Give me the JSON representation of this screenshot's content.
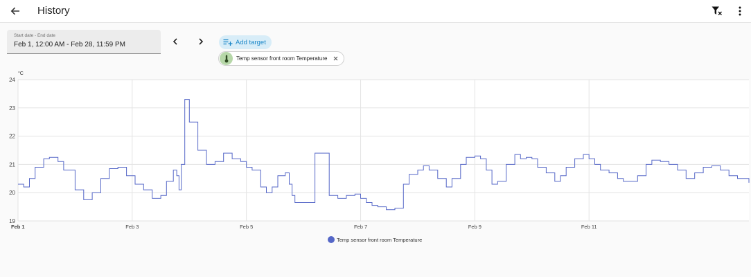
{
  "header": {
    "title": "History",
    "back_icon": "arrow-left-icon",
    "filter_icon": "filter-remove-icon",
    "menu_icon": "dots-vertical-icon"
  },
  "date_range": {
    "label": "Start date - End date",
    "value": "Feb 1, 12:00 AM - Feb 28, 11:59 PM",
    "prev_icon": "chevron-left-icon",
    "next_icon": "chevron-right-icon"
  },
  "targets": {
    "add_label": "Add target",
    "add_icon": "playlist-plus-icon",
    "chips": [
      {
        "label": "Temp sensor front room Temperature",
        "icon": "thermometer-icon"
      }
    ]
  },
  "chart_data": {
    "type": "line",
    "ylabel": "°C",
    "ylim": [
      19,
      24
    ],
    "yticks": [
      "19",
      "20",
      "21",
      "22",
      "23",
      "24"
    ],
    "xlim": [
      0,
      12.8
    ],
    "xticks": [
      {
        "x": 0,
        "label": "Feb 1"
      },
      {
        "x": 2,
        "label": "Feb 3"
      },
      {
        "x": 4,
        "label": "Feb 5"
      },
      {
        "x": 6,
        "label": "Feb 7"
      },
      {
        "x": 8,
        "label": "Feb 9"
      },
      {
        "x": 10,
        "label": "Feb 11"
      }
    ],
    "grid": true,
    "legend_position": "bottom-center",
    "colors": {
      "series": "#5567c7"
    },
    "series": [
      {
        "name": "Temp sensor front room Temperature",
        "x": [
          0,
          0.1,
          0.2,
          0.3,
          0.45,
          0.55,
          0.7,
          0.8,
          1.0,
          1.15,
          1.3,
          1.45,
          1.6,
          1.75,
          1.9,
          2.05,
          2.2,
          2.35,
          2.5,
          2.6,
          2.72,
          2.78,
          2.82,
          2.86,
          2.92,
          3.0,
          3.15,
          3.3,
          3.45,
          3.6,
          3.75,
          3.9,
          4.0,
          4.1,
          4.25,
          4.35,
          4.45,
          4.55,
          4.68,
          4.75,
          4.8,
          4.85,
          5.0,
          5.2,
          5.45,
          5.6,
          5.75,
          5.9,
          6.0,
          6.1,
          6.2,
          6.3,
          6.45,
          6.6,
          6.75,
          6.85,
          7.0,
          7.1,
          7.2,
          7.35,
          7.5,
          7.6,
          7.75,
          7.85,
          8.0,
          8.1,
          8.2,
          8.3,
          8.4,
          8.55,
          8.7,
          8.8,
          8.9,
          9.0,
          9.1,
          9.25,
          9.4,
          9.5,
          9.6,
          9.75,
          9.9,
          10.0,
          10.1,
          10.2,
          10.35,
          10.5,
          10.6,
          10.7,
          10.85,
          11.0,
          11.1,
          11.25,
          11.4,
          11.55,
          11.7,
          11.85,
          12.0,
          12.15,
          12.3,
          12.45,
          12.6,
          12.8
        ],
        "y": [
          20.3,
          20.2,
          20.5,
          20.9,
          21.2,
          21.25,
          21.1,
          20.8,
          20.1,
          19.75,
          20.0,
          20.5,
          20.85,
          20.9,
          20.6,
          20.3,
          20.1,
          19.8,
          19.9,
          20.4,
          20.8,
          20.6,
          20.1,
          21.0,
          23.3,
          22.5,
          21.5,
          21.0,
          21.1,
          21.4,
          21.2,
          21.1,
          20.9,
          20.8,
          20.2,
          20.0,
          20.2,
          20.6,
          20.7,
          20.3,
          19.9,
          19.65,
          19.65,
          21.4,
          19.9,
          19.8,
          19.9,
          19.95,
          19.8,
          19.65,
          19.55,
          19.5,
          19.4,
          19.45,
          20.3,
          20.65,
          20.8,
          20.95,
          20.8,
          20.5,
          20.2,
          20.5,
          21.0,
          21.25,
          21.3,
          21.2,
          20.8,
          20.3,
          20.4,
          21.0,
          21.35,
          21.2,
          21.25,
          21.2,
          20.9,
          20.7,
          20.4,
          20.6,
          20.9,
          21.2,
          21.35,
          21.2,
          21.0,
          20.8,
          20.7,
          20.5,
          20.4,
          20.4,
          20.6,
          21.0,
          21.15,
          21.1,
          21.0,
          20.8,
          20.5,
          20.7,
          20.9,
          20.95,
          20.8,
          20.6,
          20.5,
          20.35
        ]
      }
    ]
  }
}
